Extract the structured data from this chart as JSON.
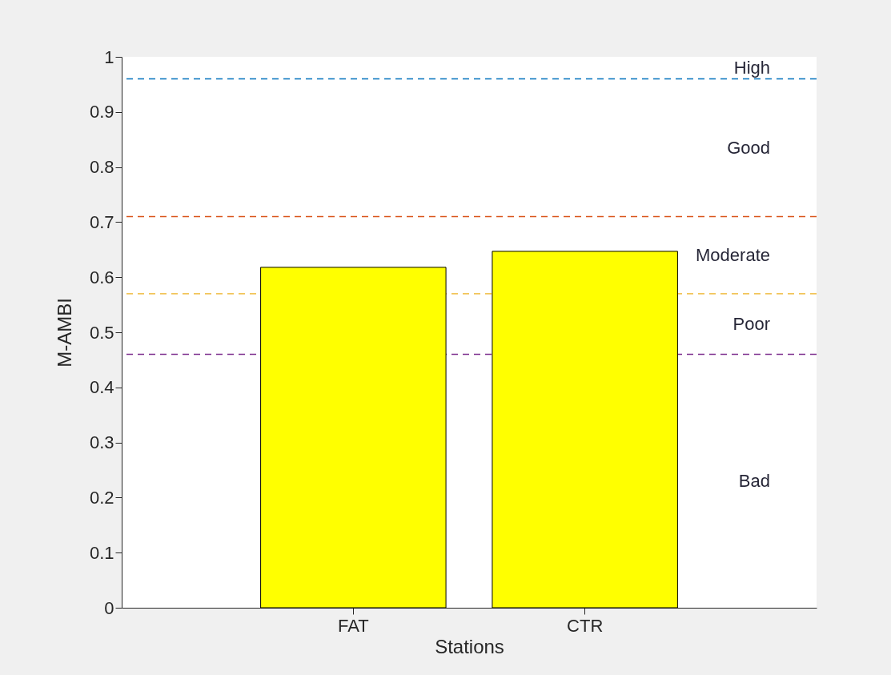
{
  "chart_data": {
    "type": "bar",
    "xlabel": "Stations",
    "ylabel": "M-AMBI",
    "categories": [
      "FAT",
      "CTR"
    ],
    "values": [
      0.618,
      0.647
    ],
    "color": "#ffff00",
    "ylim": [
      0,
      1
    ],
    "yticks": [
      0,
      0.1,
      0.2,
      0.3,
      0.4,
      0.5,
      0.6,
      0.7,
      0.8,
      0.9,
      1
    ],
    "ref_lines": [
      {
        "axis": "y",
        "value": 0.96,
        "color": "#0072bd",
        "line_style": "dashed"
      },
      {
        "axis": "y",
        "value": 0.71,
        "color": "#d95319",
        "line_style": "dashed"
      },
      {
        "axis": "y",
        "value": 0.57,
        "color": "#edb120",
        "line_style": "dashed"
      },
      {
        "axis": "y",
        "value": 0.46,
        "color": "#7e2f8e",
        "line_style": "dashed"
      }
    ],
    "annotations": [
      "High",
      "Good",
      "Moderate",
      "Poor",
      "Bad"
    ]
  }
}
